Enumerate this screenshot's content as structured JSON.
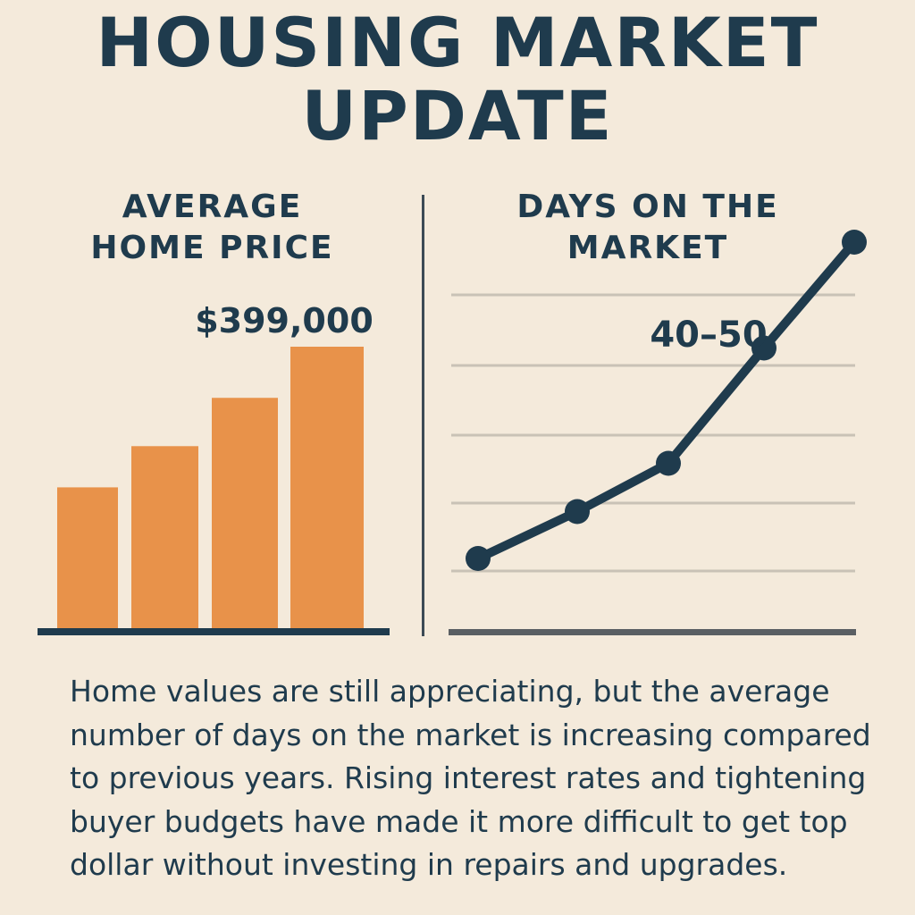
{
  "title": {
    "line1": "HOUSING MARKET",
    "line2": "UPDATE"
  },
  "colors": {
    "background": "#f4eadb",
    "text": "#1f3b4d",
    "bar": "#e8924a",
    "line": "#1f3b4d",
    "grid": "#c9c2b6"
  },
  "chart_data": [
    {
      "type": "bar",
      "title_line1": "AVERAGE",
      "title_line2": "HOME PRICE",
      "values": [
        0.505,
        0.65,
        0.82,
        1.0
      ],
      "annotation": "$399,000",
      "grid": false
    },
    {
      "type": "line",
      "title_line1": "DAYS ON THE",
      "title_line2": "MARKET",
      "values": [
        0.27,
        0.445,
        0.625,
        1.055,
        1.45
      ],
      "annotation": "40–50",
      "grid": true
    }
  ],
  "body_text": "Home values are still appreciating, but the average number of days on the market is increasing compared to previous years.  Rising interest rates and tightening buyer budgets have made it more difficult to get top dollar without investing in repairs and upgrades."
}
